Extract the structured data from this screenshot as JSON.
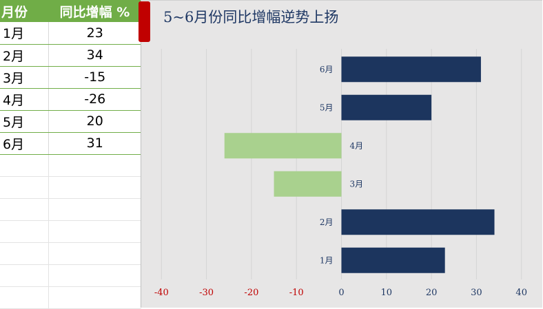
{
  "sheet": {
    "headers": [
      "月份",
      "同比增幅 %"
    ],
    "rows": [
      {
        "month": "1月",
        "value": "23"
      },
      {
        "month": "2月",
        "value": "34"
      },
      {
        "month": "3月",
        "value": "-15"
      },
      {
        "month": "4月",
        "value": "-26"
      },
      {
        "month": "5月",
        "value": "20"
      },
      {
        "month": "6月",
        "value": "31"
      }
    ],
    "colors": {
      "header_bg": "#70ad47",
      "header_text": "#ffffff"
    }
  },
  "chart_data": {
    "type": "bar",
    "orientation": "horizontal",
    "title": "5~6月份同比增幅逆势上扬",
    "categories": [
      "1月",
      "2月",
      "3月",
      "4月",
      "5月",
      "6月"
    ],
    "values": [
      23,
      34,
      -15,
      -26,
      20,
      31
    ],
    "xlim": [
      -40,
      40
    ],
    "xticks": [
      "-40",
      "-30",
      "-20",
      "-10",
      "0",
      "10",
      "20",
      "30",
      "40"
    ],
    "grid": true,
    "colors": {
      "positive": "#1c355e",
      "negative": "#a9d18e",
      "negative_tick": "#c00000",
      "background": "#e7e6e6"
    }
  }
}
